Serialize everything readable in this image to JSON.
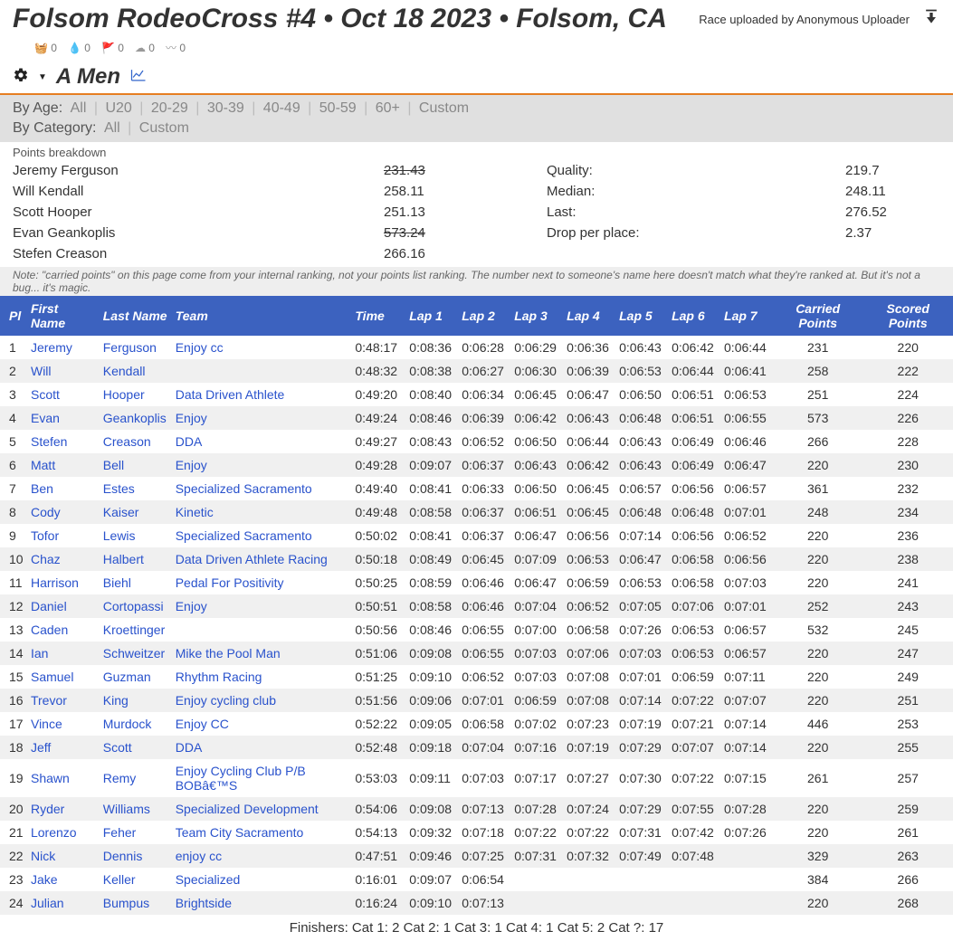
{
  "header": {
    "title": "Folsom RodeoCross #4 • Oct 18 2023 • Folsom, CA",
    "uploaded_by_label": "Race uploaded by Anonymous Uploader"
  },
  "status_counts": {
    "bucket": "0",
    "drop": "0",
    "flag": "0",
    "cloud": "0",
    "wave": "0"
  },
  "category": {
    "name": "A Men"
  },
  "filters": {
    "by_age_label": "By Age:",
    "age_all": "All",
    "age_options": [
      "U20",
      "20-29",
      "30-39",
      "40-49",
      "50-59",
      "60+",
      "Custom"
    ],
    "by_cat_label": "By Category:",
    "cat_all": "All",
    "cat_options": [
      "Custom"
    ]
  },
  "points_breakdown": {
    "label": "Points breakdown",
    "riders": [
      {
        "name": "Jeremy Ferguson",
        "value": "231.43",
        "struck": true
      },
      {
        "name": "Will Kendall",
        "value": "258.11",
        "struck": false
      },
      {
        "name": "Scott Hooper",
        "value": "251.13",
        "struck": false
      },
      {
        "name": "Evan Geankoplis",
        "value": "573.24",
        "struck": true
      },
      {
        "name": "Stefen Creason",
        "value": "266.16",
        "struck": false
      }
    ],
    "stats": [
      {
        "label": "Quality:",
        "value": "219.7"
      },
      {
        "label": "Median:",
        "value": "248.11"
      },
      {
        "label": "Last:",
        "value": "276.52"
      },
      {
        "label": "Drop per place:",
        "value": "2.37"
      }
    ]
  },
  "note": "Note: \"carried points\" on this page come from your internal ranking, not your points list ranking. The number next to someone's name here doesn't match what they're ranked at. But it's not a bug... it's magic.",
  "table": {
    "columns": [
      "Pl",
      "First Name",
      "Last Name",
      "Team",
      "Time",
      "Lap 1",
      "Lap 2",
      "Lap 3",
      "Lap 4",
      "Lap 5",
      "Lap 6",
      "Lap 7",
      "Carried Points",
      "Scored Points"
    ],
    "rows": [
      {
        "pl": "1",
        "fn": "Jeremy",
        "ln": "Ferguson",
        "team": "Enjoy cc",
        "time": "0:48:17",
        "laps": [
          "0:08:36",
          "0:06:28",
          "0:06:29",
          "0:06:36",
          "0:06:43",
          "0:06:42",
          "0:06:44"
        ],
        "cp": "231",
        "sp": "220"
      },
      {
        "pl": "2",
        "fn": "Will",
        "ln": "Kendall",
        "team": "",
        "time": "0:48:32",
        "laps": [
          "0:08:38",
          "0:06:27",
          "0:06:30",
          "0:06:39",
          "0:06:53",
          "0:06:44",
          "0:06:41"
        ],
        "cp": "258",
        "sp": "222"
      },
      {
        "pl": "3",
        "fn": "Scott",
        "ln": "Hooper",
        "team": "Data Driven Athlete",
        "time": "0:49:20",
        "laps": [
          "0:08:40",
          "0:06:34",
          "0:06:45",
          "0:06:47",
          "0:06:50",
          "0:06:51",
          "0:06:53"
        ],
        "cp": "251",
        "sp": "224"
      },
      {
        "pl": "4",
        "fn": "Evan",
        "ln": "Geankoplis",
        "team": "Enjoy",
        "time": "0:49:24",
        "laps": [
          "0:08:46",
          "0:06:39",
          "0:06:42",
          "0:06:43",
          "0:06:48",
          "0:06:51",
          "0:06:55"
        ],
        "cp": "573",
        "sp": "226"
      },
      {
        "pl": "5",
        "fn": "Stefen",
        "ln": "Creason",
        "team": "DDA",
        "time": "0:49:27",
        "laps": [
          "0:08:43",
          "0:06:52",
          "0:06:50",
          "0:06:44",
          "0:06:43",
          "0:06:49",
          "0:06:46"
        ],
        "cp": "266",
        "sp": "228"
      },
      {
        "pl": "6",
        "fn": "Matt",
        "ln": "Bell",
        "team": "Enjoy",
        "time": "0:49:28",
        "laps": [
          "0:09:07",
          "0:06:37",
          "0:06:43",
          "0:06:42",
          "0:06:43",
          "0:06:49",
          "0:06:47"
        ],
        "cp": "220",
        "sp": "230"
      },
      {
        "pl": "7",
        "fn": "Ben",
        "ln": "Estes",
        "team": "Specialized Sacramento",
        "time": "0:49:40",
        "laps": [
          "0:08:41",
          "0:06:33",
          "0:06:50",
          "0:06:45",
          "0:06:57",
          "0:06:56",
          "0:06:57"
        ],
        "cp": "361",
        "sp": "232"
      },
      {
        "pl": "8",
        "fn": "Cody",
        "ln": "Kaiser",
        "team": "Kinetic",
        "time": "0:49:48",
        "laps": [
          "0:08:58",
          "0:06:37",
          "0:06:51",
          "0:06:45",
          "0:06:48",
          "0:06:48",
          "0:07:01"
        ],
        "cp": "248",
        "sp": "234"
      },
      {
        "pl": "9",
        "fn": "Tofor",
        "ln": "Lewis",
        "team": "Specialized Sacramento",
        "time": "0:50:02",
        "laps": [
          "0:08:41",
          "0:06:37",
          "0:06:47",
          "0:06:56",
          "0:07:14",
          "0:06:56",
          "0:06:52"
        ],
        "cp": "220",
        "sp": "236"
      },
      {
        "pl": "10",
        "fn": "Chaz",
        "ln": "Halbert",
        "team": "Data Driven Athlete Racing",
        "time": "0:50:18",
        "laps": [
          "0:08:49",
          "0:06:45",
          "0:07:09",
          "0:06:53",
          "0:06:47",
          "0:06:58",
          "0:06:56"
        ],
        "cp": "220",
        "sp": "238"
      },
      {
        "pl": "11",
        "fn": "Harrison",
        "ln": "Biehl",
        "team": "Pedal For Positivity",
        "time": "0:50:25",
        "laps": [
          "0:08:59",
          "0:06:46",
          "0:06:47",
          "0:06:59",
          "0:06:53",
          "0:06:58",
          "0:07:03"
        ],
        "cp": "220",
        "sp": "241"
      },
      {
        "pl": "12",
        "fn": "Daniel",
        "ln": "Cortopassi",
        "team": "Enjoy",
        "time": "0:50:51",
        "laps": [
          "0:08:58",
          "0:06:46",
          "0:07:04",
          "0:06:52",
          "0:07:05",
          "0:07:06",
          "0:07:01"
        ],
        "cp": "252",
        "sp": "243"
      },
      {
        "pl": "13",
        "fn": "Caden",
        "ln": "Kroettinger",
        "team": "",
        "time": "0:50:56",
        "laps": [
          "0:08:46",
          "0:06:55",
          "0:07:00",
          "0:06:58",
          "0:07:26",
          "0:06:53",
          "0:06:57"
        ],
        "cp": "532",
        "sp": "245"
      },
      {
        "pl": "14",
        "fn": "Ian",
        "ln": "Schweitzer",
        "team": "Mike the Pool Man",
        "time": "0:51:06",
        "laps": [
          "0:09:08",
          "0:06:55",
          "0:07:03",
          "0:07:06",
          "0:07:03",
          "0:06:53",
          "0:06:57"
        ],
        "cp": "220",
        "sp": "247"
      },
      {
        "pl": "15",
        "fn": "Samuel",
        "ln": "Guzman",
        "team": "Rhythm Racing",
        "time": "0:51:25",
        "laps": [
          "0:09:10",
          "0:06:52",
          "0:07:03",
          "0:07:08",
          "0:07:01",
          "0:06:59",
          "0:07:11"
        ],
        "cp": "220",
        "sp": "249"
      },
      {
        "pl": "16",
        "fn": "Trevor",
        "ln": "King",
        "team": "Enjoy cycling club",
        "time": "0:51:56",
        "laps": [
          "0:09:06",
          "0:07:01",
          "0:06:59",
          "0:07:08",
          "0:07:14",
          "0:07:22",
          "0:07:07"
        ],
        "cp": "220",
        "sp": "251"
      },
      {
        "pl": "17",
        "fn": "Vince",
        "ln": "Murdock",
        "team": "Enjoy CC",
        "time": "0:52:22",
        "laps": [
          "0:09:05",
          "0:06:58",
          "0:07:02",
          "0:07:23",
          "0:07:19",
          "0:07:21",
          "0:07:14"
        ],
        "cp": "446",
        "sp": "253"
      },
      {
        "pl": "18",
        "fn": "Jeff",
        "ln": "Scott",
        "team": "DDA",
        "time": "0:52:48",
        "laps": [
          "0:09:18",
          "0:07:04",
          "0:07:16",
          "0:07:19",
          "0:07:29",
          "0:07:07",
          "0:07:14"
        ],
        "cp": "220",
        "sp": "255"
      },
      {
        "pl": "19",
        "fn": "Shawn",
        "ln": "Remy",
        "team": "Enjoy Cycling Club P/B BOBâ€™S",
        "time": "0:53:03",
        "laps": [
          "0:09:11",
          "0:07:03",
          "0:07:17",
          "0:07:27",
          "0:07:30",
          "0:07:22",
          "0:07:15"
        ],
        "cp": "261",
        "sp": "257"
      },
      {
        "pl": "20",
        "fn": "Ryder",
        "ln": "Williams",
        "team": "Specialized Development",
        "time": "0:54:06",
        "laps": [
          "0:09:08",
          "0:07:13",
          "0:07:28",
          "0:07:24",
          "0:07:29",
          "0:07:55",
          "0:07:28"
        ],
        "cp": "220",
        "sp": "259"
      },
      {
        "pl": "21",
        "fn": "Lorenzo",
        "ln": "Feher",
        "team": "Team City Sacramento",
        "time": "0:54:13",
        "laps": [
          "0:09:32",
          "0:07:18",
          "0:07:22",
          "0:07:22",
          "0:07:31",
          "0:07:42",
          "0:07:26"
        ],
        "cp": "220",
        "sp": "261"
      },
      {
        "pl": "22",
        "fn": "Nick",
        "ln": "Dennis",
        "team": "enjoy cc",
        "time": "0:47:51",
        "laps": [
          "0:09:46",
          "0:07:25",
          "0:07:31",
          "0:07:32",
          "0:07:49",
          "0:07:48",
          ""
        ],
        "cp": "329",
        "sp": "263"
      },
      {
        "pl": "23",
        "fn": "Jake",
        "ln": "Keller",
        "team": "Specialized",
        "time": "0:16:01",
        "laps": [
          "0:09:07",
          "0:06:54",
          "",
          "",
          "",
          "",
          ""
        ],
        "cp": "384",
        "sp": "266"
      },
      {
        "pl": "24",
        "fn": "Julian",
        "ln": "Bumpus",
        "team": "Brightside",
        "time": "0:16:24",
        "laps": [
          "0:09:10",
          "0:07:13",
          "",
          "",
          "",
          "",
          ""
        ],
        "cp": "220",
        "sp": "268"
      }
    ]
  },
  "finishers": "Finishers: Cat 1: 2   Cat 2: 1   Cat 3: 1   Cat 4: 1   Cat 5: 2   Cat ?: 17",
  "colors": {
    "header_bg": "#3c62bf",
    "accent_border": "#e67e22",
    "link": "#2952cc",
    "row_alt": "#f0f0f0"
  }
}
